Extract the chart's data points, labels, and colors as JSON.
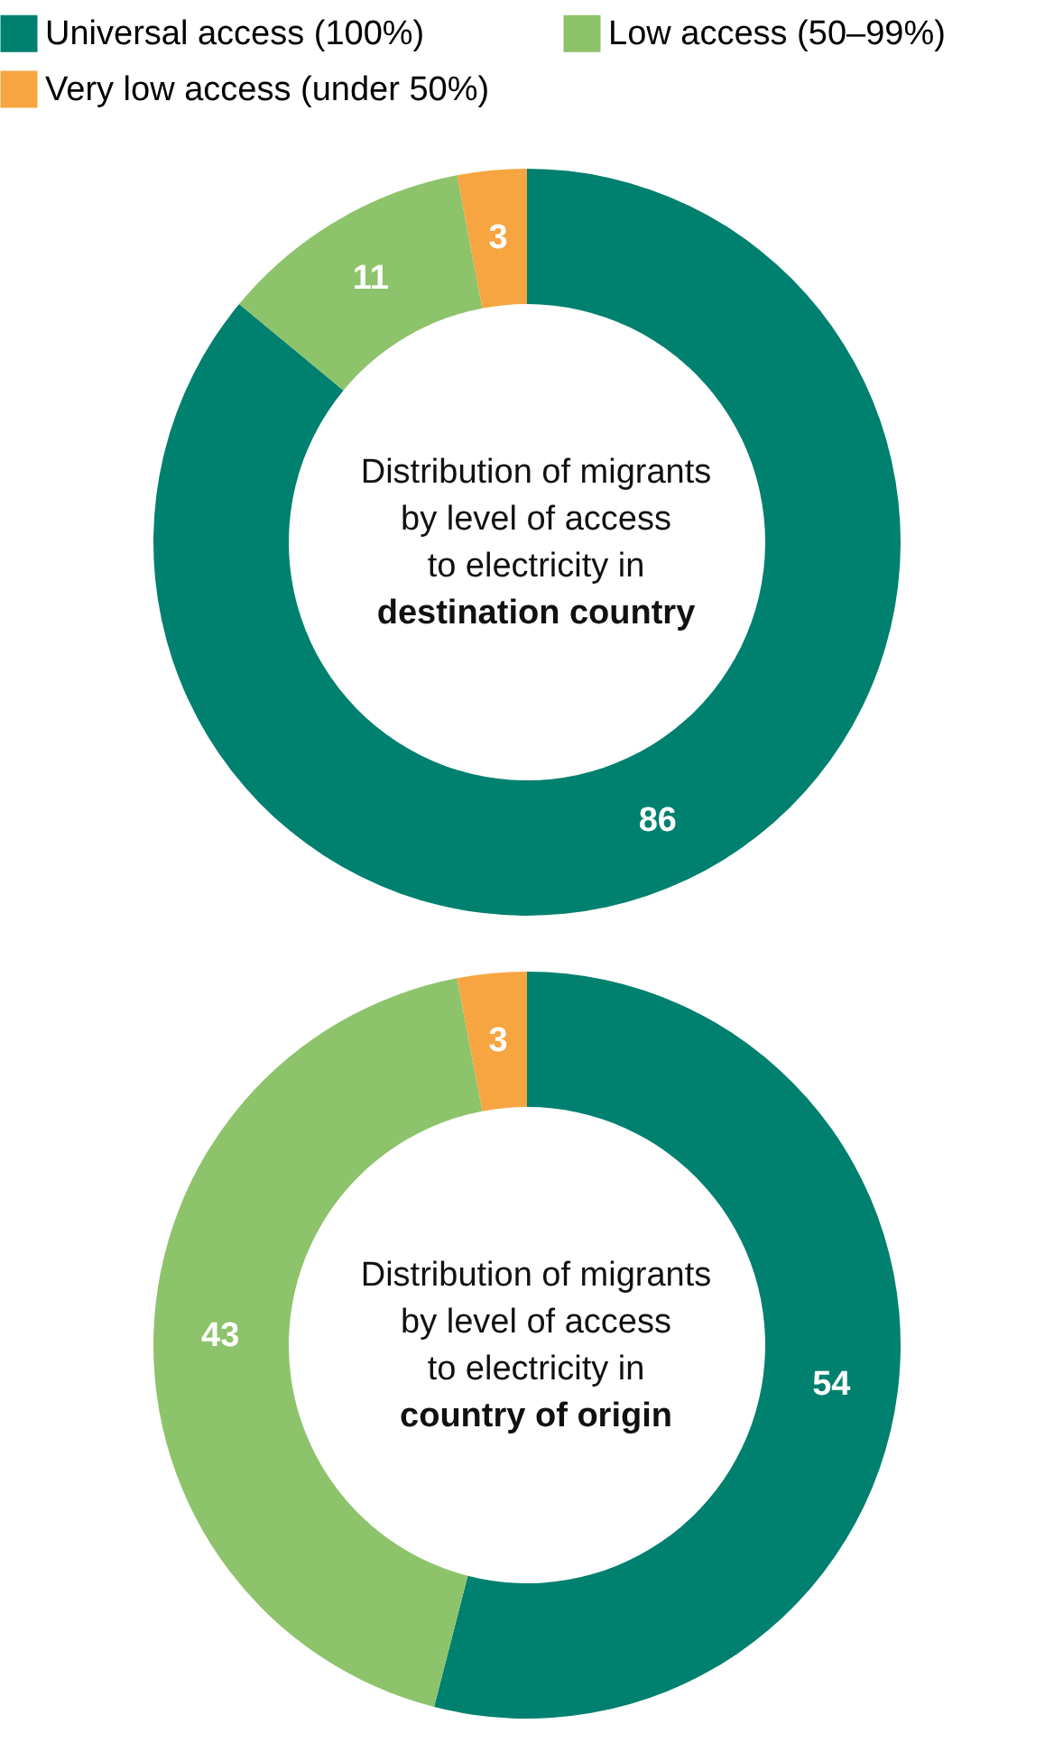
{
  "chart_data": [
    {
      "type": "donut",
      "title": "Distribution of migrants\nby level of access\nto electricity in",
      "subtitle": "destination country",
      "categories": [
        "Universal access (100%)",
        "Low access (50–99%)",
        "Very low access (under 50%)"
      ],
      "values": [
        86,
        11,
        3
      ],
      "colors": [
        "#00806f",
        "#8dc36b",
        "#f7a541"
      ],
      "data_labels": true,
      "legend": "top"
    },
    {
      "type": "donut",
      "title": "Distribution of migrants\nby level of access\nto electricity in",
      "subtitle": "country of origin",
      "categories": [
        null,
        null,
        null
      ],
      "values": [
        54,
        43,
        3
      ],
      "colors": [
        "#00806f",
        "#8dc36b",
        "#f7a541"
      ],
      "data_labels": true
    }
  ]
}
